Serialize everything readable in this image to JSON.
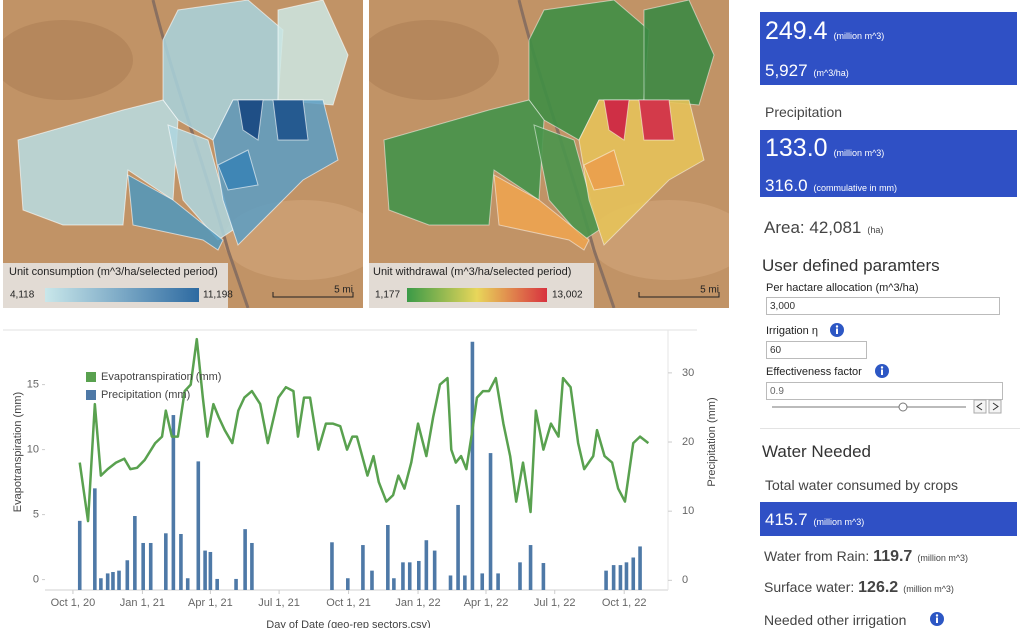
{
  "maps": [
    {
      "legend_title": "Unit consumption (m^3/ha/selected period)",
      "legend_min": "4,118",
      "legend_max": "11,198",
      "scale": "5 mi"
    },
    {
      "legend_title": "Unit withdrawal (m^3/ha/selected period)",
      "legend_min": "1,177",
      "legend_max": "13,002",
      "scale": "5 mi"
    }
  ],
  "chart_data": {
    "type": "combo",
    "x_label": "Day of Date (geo-rep sectors.csv)",
    "y_label": "Evapotranspiration (mm)",
    "y2_label": "Precipitation (mm)",
    "xlim": [
      "2020-08-25",
      "2022-11-28"
    ],
    "xticks": [
      {
        "value": "2020-10-01",
        "label": "Oct 1, 20"
      },
      {
        "value": "2021-01-01",
        "label": "Jan 1, 21"
      },
      {
        "value": "2021-04-01",
        "label": "Apr 1, 21"
      },
      {
        "value": "2021-07-01",
        "label": "Jul 1, 21"
      },
      {
        "value": "2021-10-01",
        "label": "Oct 1, 21"
      },
      {
        "value": "2022-01-01",
        "label": "Jan 1, 22"
      },
      {
        "value": "2022-04-01",
        "label": "Apr 1, 22"
      },
      {
        "value": "2022-07-01",
        "label": "Jul 1, 22"
      },
      {
        "value": "2022-10-01",
        "label": "Oct 1, 22"
      }
    ],
    "ylim": [
      -0.8,
      19.2
    ],
    "yticks": [
      0,
      5,
      10,
      15
    ],
    "y2lim": [
      -1.4,
      36.2
    ],
    "y2ticks": [
      0,
      10,
      20,
      30
    ],
    "series": [
      {
        "name": "Evapotranspiration (mm)",
        "type": "line",
        "color": "#59a14f",
        "x": [
          "2020-10-10",
          "2020-10-21",
          "2020-10-30",
          "2020-11-07",
          "2020-11-16",
          "2020-11-27",
          "2020-12-08",
          "2020-12-16",
          "2020-12-25",
          "2021-01-04",
          "2021-01-18",
          "2021-01-27",
          "2021-02-01",
          "2021-02-09",
          "2021-02-17",
          "2021-02-26",
          "2021-03-06",
          "2021-03-14",
          "2021-03-22",
          "2021-03-28",
          "2021-04-05",
          "2021-04-12",
          "2021-04-20",
          "2021-04-30",
          "2021-05-08",
          "2021-05-16",
          "2021-05-26",
          "2021-06-06",
          "2021-06-16",
          "2021-06-30",
          "2021-07-10",
          "2021-07-20",
          "2021-07-26",
          "2021-08-03",
          "2021-08-11",
          "2021-08-22",
          "2021-09-01",
          "2021-09-10",
          "2021-09-20",
          "2021-09-29",
          "2021-10-06",
          "2021-10-12",
          "2021-10-26",
          "2021-11-03",
          "2021-11-10",
          "2021-11-20",
          "2021-11-29",
          "2021-12-06",
          "2021-12-14",
          "2021-12-23",
          "2022-01-01",
          "2022-01-12",
          "2022-01-21",
          "2022-01-30",
          "2022-02-09",
          "2022-02-14",
          "2022-02-20",
          "2022-02-27",
          "2022-03-06",
          "2022-03-14",
          "2022-03-20",
          "2022-03-28",
          "2022-04-05",
          "2022-04-14",
          "2022-04-24",
          "2022-05-03",
          "2022-05-11",
          "2022-05-20",
          "2022-05-30",
          "2022-06-06",
          "2022-06-16",
          "2022-06-26",
          "2022-07-06",
          "2022-07-12",
          "2022-07-22",
          "2022-08-01",
          "2022-08-09",
          "2022-08-21",
          "2022-08-26",
          "2022-09-05",
          "2022-09-15",
          "2022-09-23",
          "2022-10-02",
          "2022-10-13",
          "2022-10-22",
          "2022-11-02"
        ],
        "values": [
          9,
          4.5,
          13.5,
          8,
          8.5,
          9,
          9.3,
          8.5,
          8.6,
          9.2,
          10.5,
          11,
          13,
          11,
          11,
          14.5,
          15,
          18.5,
          14,
          11,
          13.5,
          12.5,
          11.5,
          10.5,
          13,
          14,
          14.5,
          13.5,
          10.5,
          14,
          14.8,
          14.5,
          11,
          14,
          14,
          10,
          12,
          12,
          11.8,
          10,
          11,
          11,
          8,
          9.5,
          7.5,
          6,
          6.5,
          8,
          7,
          9,
          12,
          9.5,
          12.5,
          15,
          15.5,
          10,
          9,
          9.5,
          8.5,
          11.5,
          14,
          14.5,
          14.5,
          15.5,
          12,
          9.5,
          6,
          9,
          5.2,
          13,
          10,
          12,
          11,
          15.5,
          14.8,
          10.5,
          8.5,
          9.5,
          11.5,
          9.5,
          9,
          7,
          6,
          10.5,
          11,
          10.5
        ]
      },
      {
        "name": "Precipitation (mm)",
        "type": "bar",
        "axis": "y2",
        "color": "#4e79a7",
        "x": [
          "2020-10-10",
          "2020-10-30",
          "2020-11-07",
          "2020-11-16",
          "2020-11-23",
          "2020-12-01",
          "2020-12-12",
          "2020-12-22",
          "2021-01-02",
          "2021-01-12",
          "2021-02-01",
          "2021-02-11",
          "2021-02-21",
          "2021-03-02",
          "2021-03-16",
          "2021-03-25",
          "2021-04-01",
          "2021-04-10",
          "2021-05-05",
          "2021-05-17",
          "2021-05-26",
          "2021-09-09",
          "2021-09-30",
          "2021-10-20",
          "2021-11-01",
          "2021-11-22",
          "2021-11-30",
          "2021-12-12",
          "2021-12-21",
          "2022-01-02",
          "2022-01-12",
          "2022-01-23",
          "2022-02-13",
          "2022-02-23",
          "2022-03-04",
          "2022-03-14",
          "2022-03-27",
          "2022-04-07",
          "2022-04-17",
          "2022-05-16",
          "2022-05-30",
          "2022-06-16",
          "2022-09-07",
          "2022-09-17",
          "2022-09-26",
          "2022-10-04",
          "2022-10-13",
          "2022-10-22"
        ],
        "values": [
          8.6,
          13.3,
          0.3,
          1,
          1.2,
          1.4,
          2.9,
          9.3,
          5.4,
          5.4,
          6.8,
          23.9,
          6.7,
          0.3,
          17.2,
          4.3,
          4.1,
          0.2,
          0.2,
          7.4,
          5.4,
          5.5,
          0.3,
          5.1,
          1.4,
          8,
          0.3,
          2.6,
          2.6,
          2.8,
          5.8,
          4.3,
          0.7,
          10.9,
          0.7,
          34.5,
          1,
          18.4,
          1,
          2.6,
          5.1,
          2.5,
          1.4,
          2.2,
          2.2,
          2.6,
          3.3,
          4.9
        ]
      }
    ]
  },
  "summary": {
    "consumption": {
      "value": "249.4",
      "unit": "(million m^3)",
      "per_ha": "5,927",
      "per_ha_unit": "(m^3/ha)"
    },
    "precipitation": {
      "label": "Precipitation",
      "value": "133.0",
      "unit": "(million m^3)",
      "mm": "316.0",
      "mm_unit": "(commulative in mm)"
    },
    "area": {
      "label": "Area:",
      "value": "42,081",
      "unit": "(ha)"
    }
  },
  "parameters": {
    "title": "User defined paramters",
    "fields": [
      {
        "label": "Per hactare allocation (m^3/ha)",
        "value": "3,000"
      },
      {
        "label": "Irrigation η",
        "value": "60"
      },
      {
        "label": "Effectiveness factor",
        "value": "0.9"
      }
    ]
  },
  "water_needed": {
    "title": "Water Needed",
    "total_label": "Total water consumed by crops",
    "total_value": "415.7",
    "total_unit": "(million m^3)",
    "rows": [
      {
        "label": "Water from Rain:",
        "value": "119.7",
        "unit": "(million m^3)"
      },
      {
        "label": "Surface water:",
        "value": "126.2",
        "unit": "(million m^3)"
      },
      {
        "label": "Needed other irrigation"
      }
    ]
  }
}
